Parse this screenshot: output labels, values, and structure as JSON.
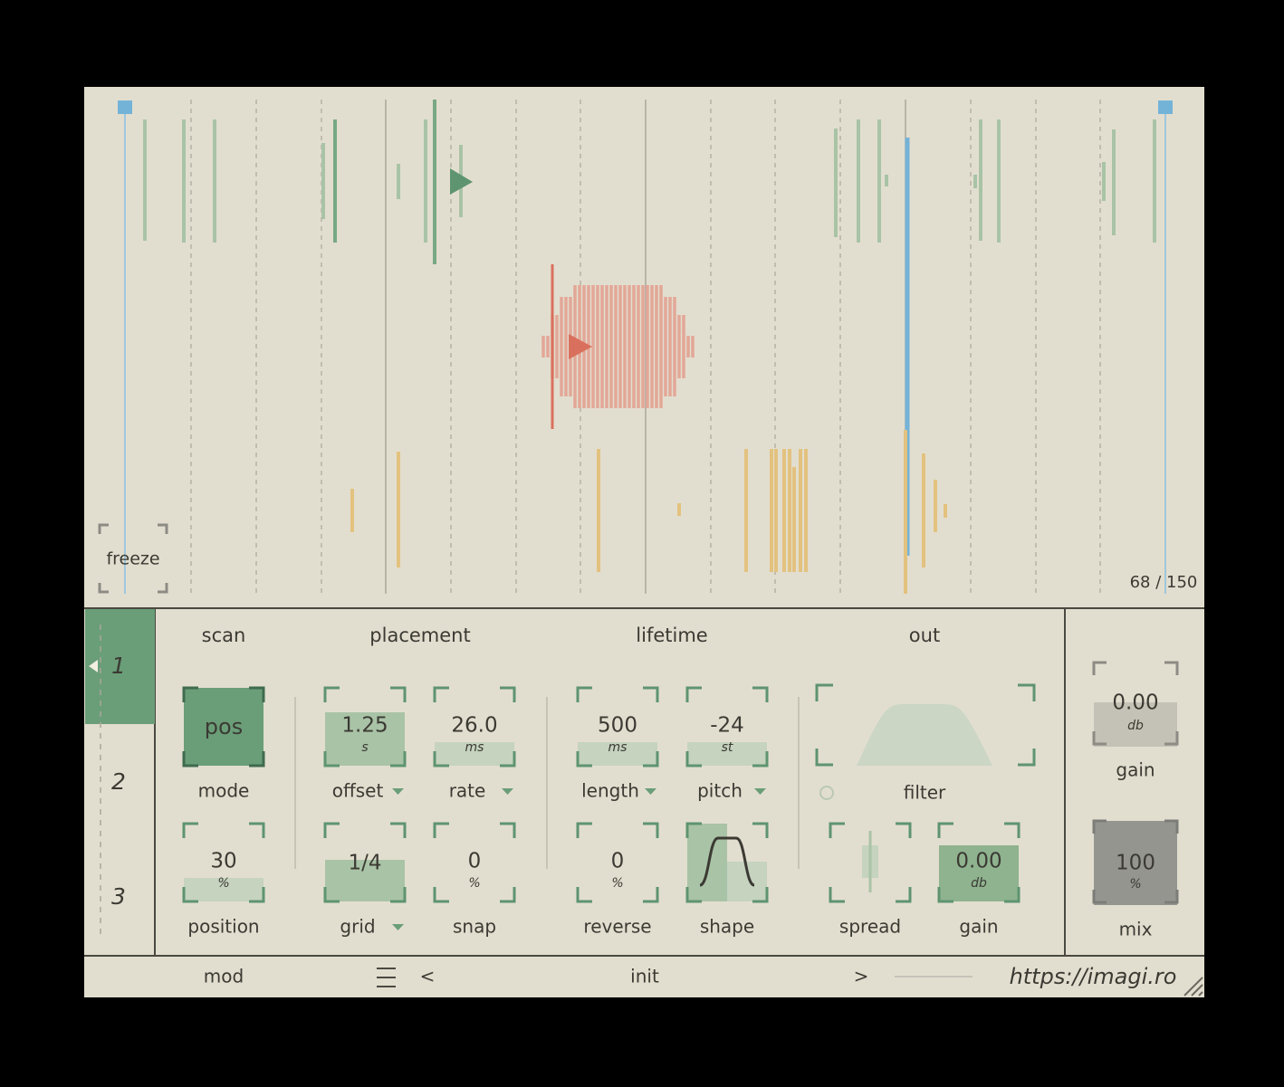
{
  "display": {
    "freeze": "freeze",
    "counter": "68 / 150"
  },
  "tabs": [
    "1",
    "2",
    "3"
  ],
  "sections": [
    "scan",
    "placement",
    "lifetime",
    "out"
  ],
  "controls": [
    {
      "value": "pos",
      "label": "mode"
    },
    {
      "value": "1.25",
      "unit": "s",
      "label": "offset"
    },
    {
      "value": "26.0",
      "unit": "ms",
      "label": "rate"
    },
    {
      "value": "500",
      "unit": "ms",
      "label": "length"
    },
    {
      "value": "-24",
      "unit": "st",
      "label": "pitch"
    },
    {
      "value": "30",
      "unit": "%",
      "label": "position"
    },
    {
      "value": "1/4",
      "label": "grid"
    },
    {
      "value": "0",
      "unit": "%",
      "label": "snap"
    },
    {
      "value": "0",
      "unit": "%",
      "label": "reverse"
    },
    {
      "label": "shape"
    },
    {
      "label": "spread"
    },
    {
      "value": "0.00",
      "unit": "db",
      "label": "gain"
    },
    {
      "label": "filter"
    }
  ],
  "master": [
    {
      "value": "0.00",
      "unit": "db",
      "label": "gain"
    },
    {
      "value": "100",
      "unit": "%",
      "label": "mix"
    }
  ],
  "footer": {
    "mod": "mod",
    "prev": "<",
    "preset": "init",
    "next": ">",
    "url": "https://imagi.ro"
  }
}
